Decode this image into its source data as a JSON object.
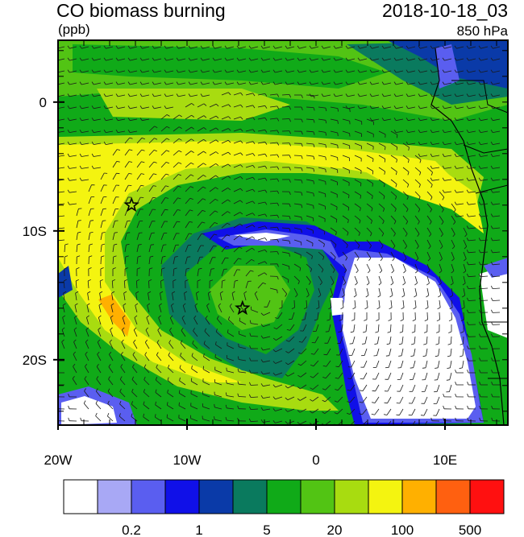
{
  "title": "CO biomass burning",
  "timestamp": "2018-10-18_03",
  "units": "(ppb)",
  "level": "850 hPa",
  "y_axis": {
    "ticks": [
      {
        "label": "0",
        "lat": 0
      },
      {
        "label": "10S",
        "lat": -10
      },
      {
        "label": "20S",
        "lat": -20
      }
    ]
  },
  "x_axis": {
    "ticks": [
      {
        "label": "20W",
        "lon": -20
      },
      {
        "label": "10W",
        "lon": -10
      },
      {
        "label": "0",
        "lon": 0
      },
      {
        "label": "10E",
        "lon": 10
      }
    ]
  },
  "colorbar": {
    "colors": [
      "#ffffff",
      "#a8a8f5",
      "#5a5ef0",
      "#1010e8",
      "#0a3aa8",
      "#0a7a5e",
      "#10aa18",
      "#52c414",
      "#a8dc10",
      "#f4f410",
      "#ffb000",
      "#ff6010",
      "#ff1010"
    ],
    "labels": [
      "0.2",
      "1",
      "5",
      "20",
      "100",
      "500"
    ]
  },
  "markers": [
    {
      "name": "star-marker-north",
      "lon": -14.3,
      "lat": -8
    },
    {
      "name": "star-marker-south",
      "lon": -5.7,
      "lat": -16
    }
  ]
}
